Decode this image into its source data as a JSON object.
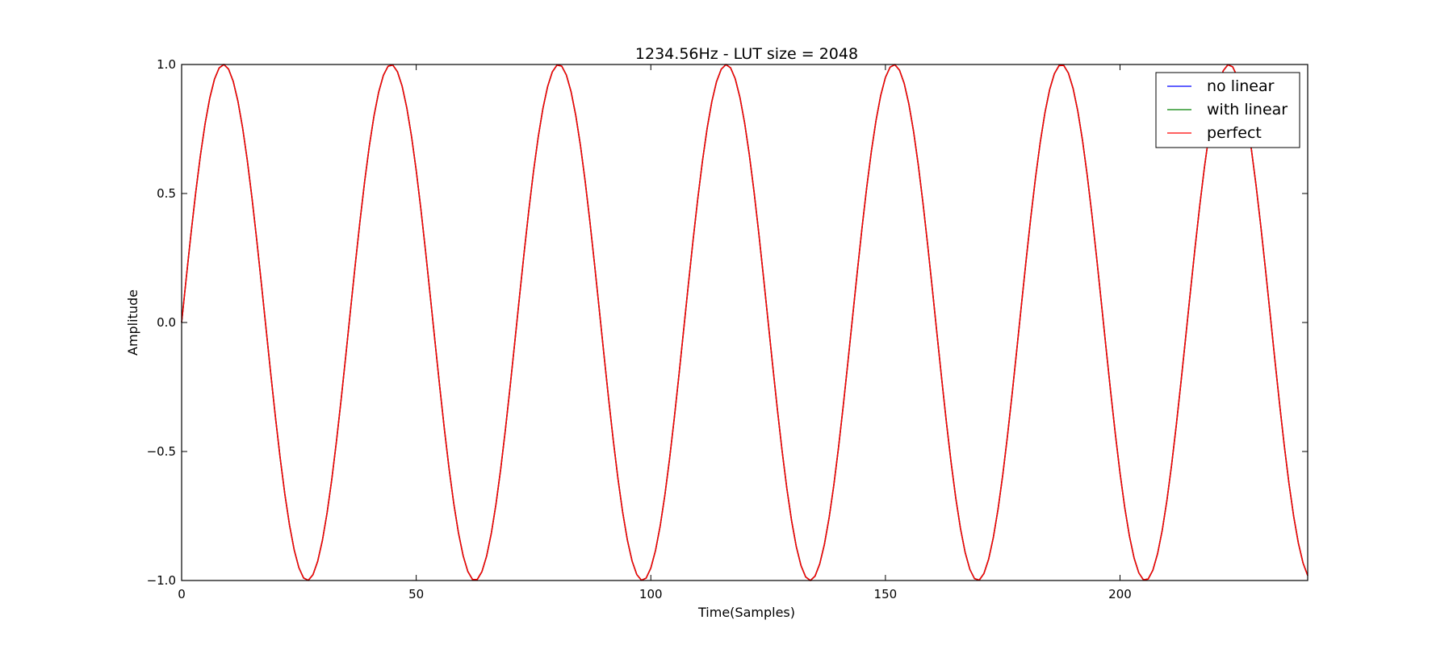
{
  "chart_data": {
    "type": "line",
    "title": "1234.56Hz - LUT size = 2048",
    "xlabel": "Time(Samples)",
    "ylabel": "Amplitude",
    "xlim": [
      0,
      240
    ],
    "ylim": [
      -1.0,
      1.0
    ],
    "grid": false,
    "legend_position": "top-right",
    "x_ticks": [
      {
        "value": 0,
        "label": "0"
      },
      {
        "value": 50,
        "label": "50"
      },
      {
        "value": 100,
        "label": "100"
      },
      {
        "value": 150,
        "label": "150"
      },
      {
        "value": 200,
        "label": "200"
      }
    ],
    "y_ticks": [
      {
        "value": 1.0,
        "label": "1.0"
      },
      {
        "value": 0.5,
        "label": "0.5"
      },
      {
        "value": 0.0,
        "label": "0.0"
      },
      {
        "value": -0.5,
        "label": "−0.5"
      },
      {
        "value": -1.0,
        "label": "−1.0"
      }
    ],
    "signal": {
      "function": "sine",
      "amplitude": 1.0,
      "period_samples": 35.72,
      "phase": 0.0,
      "sample_step": 1
    },
    "series": [
      {
        "name": "no linear",
        "color": "#0000ff"
      },
      {
        "name": "with linear",
        "color": "#008000"
      },
      {
        "name": "perfect",
        "color": "#ff0000"
      }
    ]
  }
}
